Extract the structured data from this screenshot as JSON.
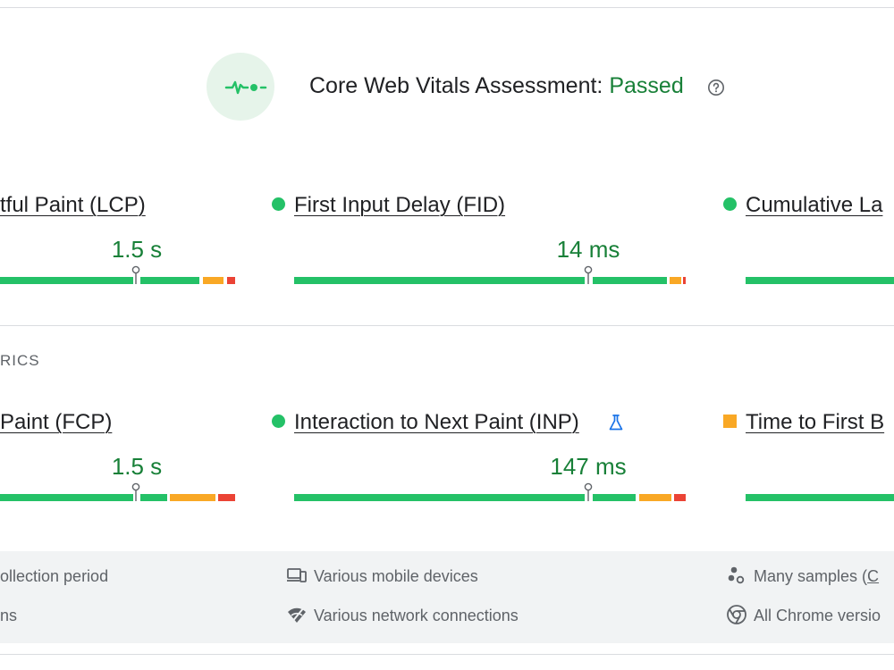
{
  "assessment": {
    "title": "Core Web Vitals Assessment:",
    "status": "Passed",
    "status_color": "#188038"
  },
  "core_metrics": [
    {
      "name": "tful Paint (LCP)",
      "value": "1.5 s",
      "rating": "good",
      "marker_position_pct": 59
    },
    {
      "name": "First Input Delay (FID)",
      "value": "14 ms",
      "rating": "good",
      "marker_position_pct": 75
    },
    {
      "name": "Cumulative La",
      "value": "",
      "rating": "good"
    }
  ],
  "other_metrics_label": "RICS",
  "other_metrics": [
    {
      "name": "Paint (FCP)",
      "value": "1.5 s",
      "rating": "good",
      "marker_position_pct": 59
    },
    {
      "name": "Interaction to Next Paint (INP)",
      "value": "147 ms",
      "rating": "good",
      "marker_position_pct": 75,
      "experimental": true
    },
    {
      "name": "Time to First B",
      "value": "",
      "rating": "needs-improvement"
    }
  ],
  "footer": {
    "row1": [
      {
        "icon": "calendar-icon",
        "text": "ollection period"
      },
      {
        "icon": "devices-icon",
        "text": "Various mobile devices"
      },
      {
        "icon": "samples-icon",
        "text": "Many samples (",
        "link": "C"
      }
    ],
    "row2": [
      {
        "icon": "timer-icon",
        "text": "ns"
      },
      {
        "icon": "network-icon",
        "text": "Various network connections"
      },
      {
        "icon": "chrome-icon",
        "text": "All Chrome versio"
      }
    ]
  },
  "colors": {
    "good": "#24c167",
    "needs_improvement": "#f9a825",
    "poor": "#eb4335",
    "value_text": "#188038"
  }
}
